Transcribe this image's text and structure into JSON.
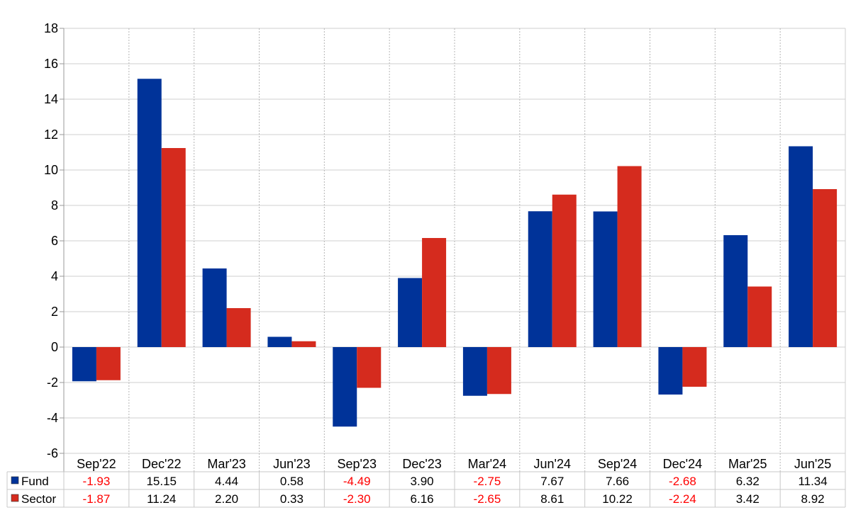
{
  "chart_data": {
    "type": "bar",
    "categories": [
      "Sep'22",
      "Dec'22",
      "Mar'23",
      "Jun'23",
      "Sep'23",
      "Dec'23",
      "Mar'24",
      "Jun'24",
      "Sep'24",
      "Dec'24",
      "Mar'25",
      "Jun'25"
    ],
    "series": [
      {
        "name": "Fund",
        "color": "#003399",
        "values": [
          -1.93,
          15.15,
          4.44,
          0.58,
          -4.49,
          3.9,
          -2.75,
          7.67,
          7.66,
          -2.68,
          6.32,
          11.34
        ],
        "labels": [
          "-1.93",
          "15.15",
          "4.44",
          "0.58",
          "-4.49",
          "3.90",
          "-2.75",
          "7.67",
          "7.66",
          "-2.68",
          "6.32",
          "11.34"
        ]
      },
      {
        "name": "Sector",
        "color": "#d52b1e",
        "values": [
          -1.87,
          11.24,
          2.2,
          0.33,
          -2.3,
          6.16,
          -2.65,
          8.61,
          10.22,
          -2.24,
          3.42,
          8.92
        ],
        "labels": [
          "-1.87",
          "11.24",
          "2.20",
          "0.33",
          "-2.30",
          "6.16",
          "-2.65",
          "8.61",
          "10.22",
          "-2.24",
          "3.42",
          "8.92"
        ]
      }
    ],
    "ylim": [
      -6,
      18
    ],
    "yticks": [
      "-6",
      "-4",
      "-2",
      "0",
      "2",
      "4",
      "6",
      "8",
      "10",
      "12",
      "14",
      "16",
      "18"
    ],
    "grid": true,
    "legend": "data-table-left",
    "negative_label_color": "#ff0000",
    "positive_label_color": "#000000",
    "title": "",
    "xlabel": "",
    "ylabel": ""
  }
}
